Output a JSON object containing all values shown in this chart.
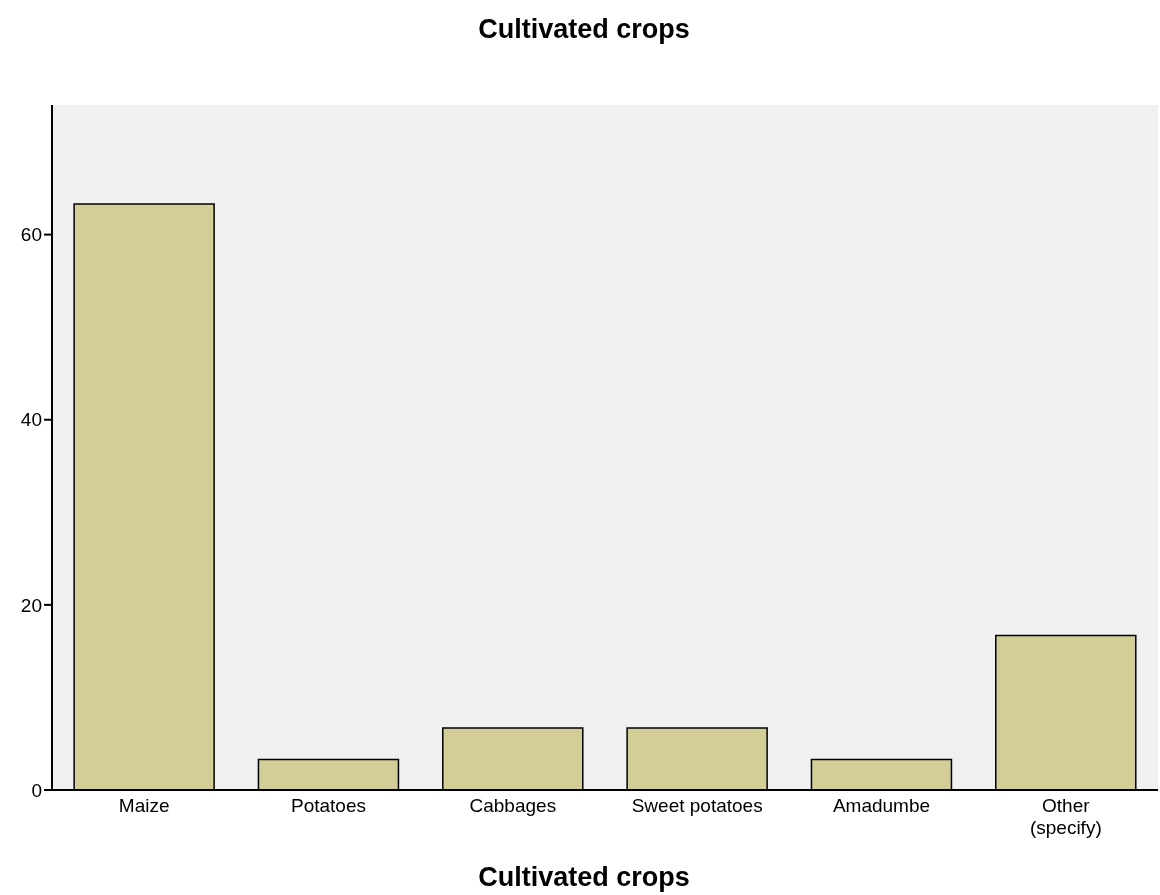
{
  "chart_data": {
    "type": "bar",
    "title": "Cultivated crops",
    "xlabel": "Cultivated crops",
    "categories": [
      "Maize",
      "Potatoes",
      "Cabbages",
      "Sweet potatoes",
      "Amadumbe",
      "Other (specify)"
    ],
    "values": [
      63.3,
      3.3,
      6.7,
      6.7,
      3.3,
      16.7
    ],
    "color": "#d3ce97",
    "ylim": [
      0,
      74
    ],
    "yticks": [
      0,
      20,
      40,
      60
    ]
  }
}
